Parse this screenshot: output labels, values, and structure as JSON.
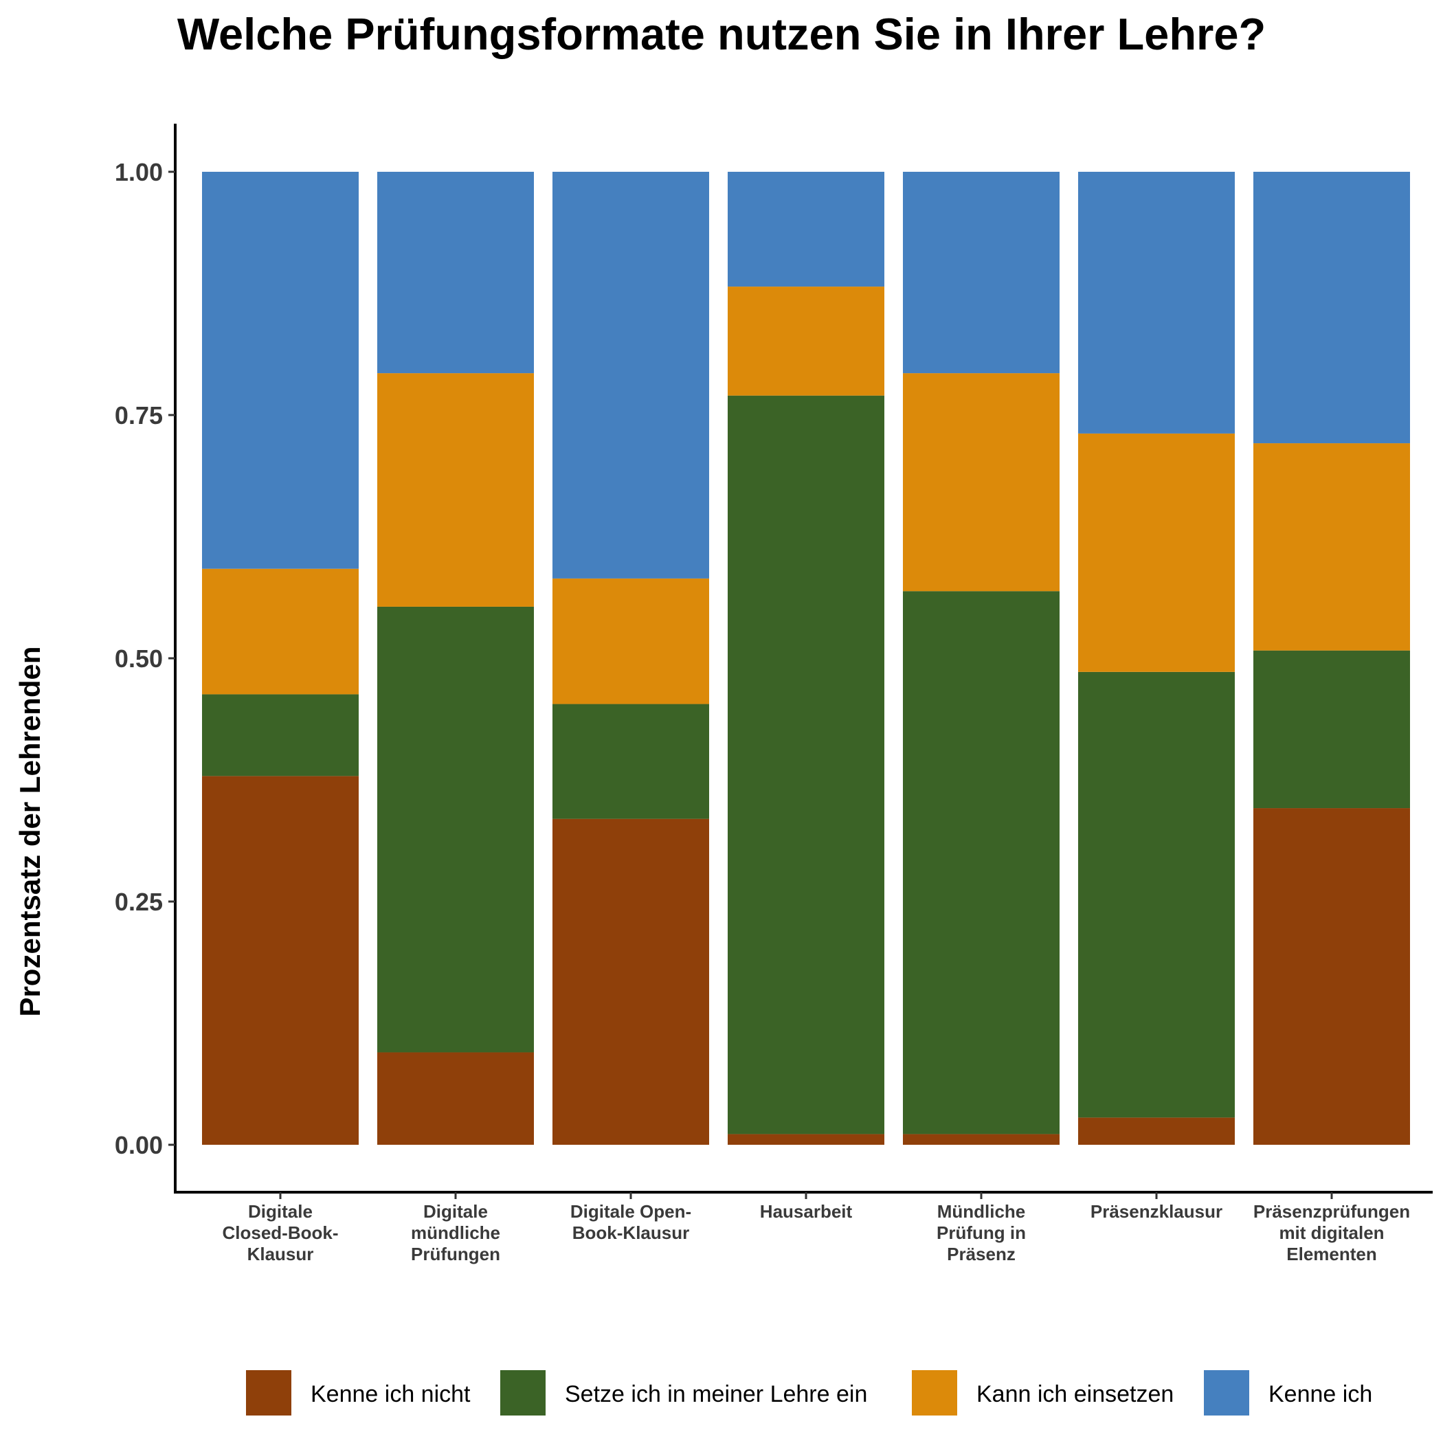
{
  "chart_data": {
    "type": "bar",
    "stacked": true,
    "title": "Welche Prüfungsformate nutzen Sie in Ihrer Lehre?",
    "xlabel": "",
    "ylabel": "Prozentsatz der Lehrenden",
    "ylim": [
      0,
      1.05
    ],
    "yticks": [
      "0.00",
      "0.25",
      "0.50",
      "0.75",
      "1.00"
    ],
    "grid": false,
    "legend_position": "bottom",
    "categories": [
      [
        "Digitale",
        "Closed-Book-",
        "Klausur"
      ],
      [
        "Digitale",
        "mündliche",
        "Prüfungen"
      ],
      [
        "Digitale Open-",
        "Book-Klausur"
      ],
      [
        "Hausarbeit"
      ],
      [
        "Mündliche",
        "Prüfung in",
        "Präsenz"
      ],
      [
        "Präsenzklausur"
      ],
      [
        "Präsenzprüfungen",
        "mit digitalen",
        "Elementen"
      ]
    ],
    "series": [
      {
        "name": "Kenne ich nicht",
        "color": "#8f400a",
        "values": [
          0.379,
          0.095,
          0.335,
          0.011,
          0.011,
          0.028,
          0.346
        ]
      },
      {
        "name": "Setze ich in meiner Lehre ein",
        "color": "#3b6326",
        "values": [
          0.084,
          0.458,
          0.118,
          0.759,
          0.558,
          0.458,
          0.162
        ]
      },
      {
        "name": "Kann ich einsetzen",
        "color": "#dc8a0a",
        "values": [
          0.129,
          0.24,
          0.129,
          0.112,
          0.224,
          0.245,
          0.213
        ]
      },
      {
        "name": "Kenne ich",
        "color": "#4580bf",
        "values": [
          0.408,
          0.207,
          0.418,
          0.118,
          0.207,
          0.269,
          0.279
        ]
      }
    ]
  }
}
